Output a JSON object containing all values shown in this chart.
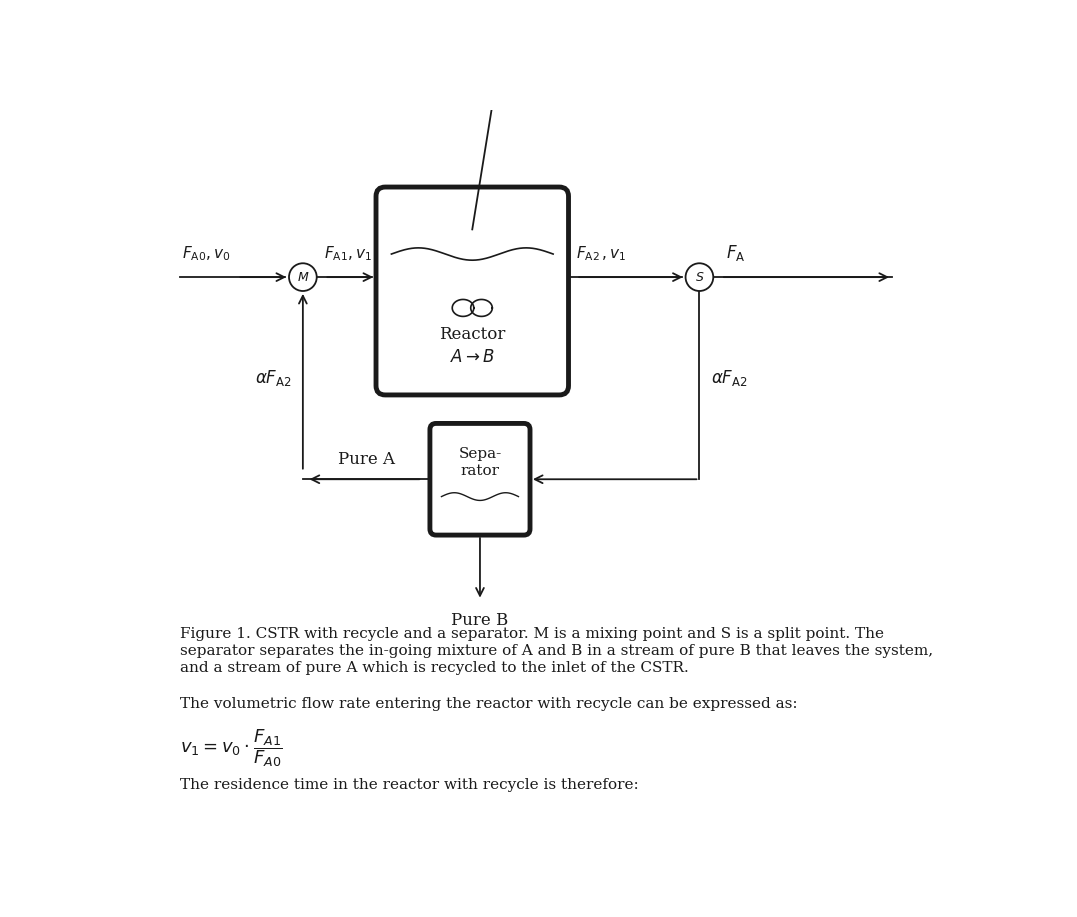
{
  "bg_color": "#ffffff",
  "text_color": "#1a1a1a",
  "line_color": "#1a1a1a",
  "fig_width": 10.77,
  "fig_height": 9.17,
  "caption_line1": "Figure 1. CSTR with recycle and a separator. M is a mixing point and S is a split point. The",
  "caption_line2": "separator separates the in-going mixture of A and B in a stream of pure B that leaves the system,",
  "caption_line3": "and a stream of pure A which is recycled to the inlet of the CSTR.",
  "text1": "The volumetric flow rate entering the reactor with recycle can be expressed as:",
  "text2": "The residence time in the reactor with recycle is therefore:"
}
